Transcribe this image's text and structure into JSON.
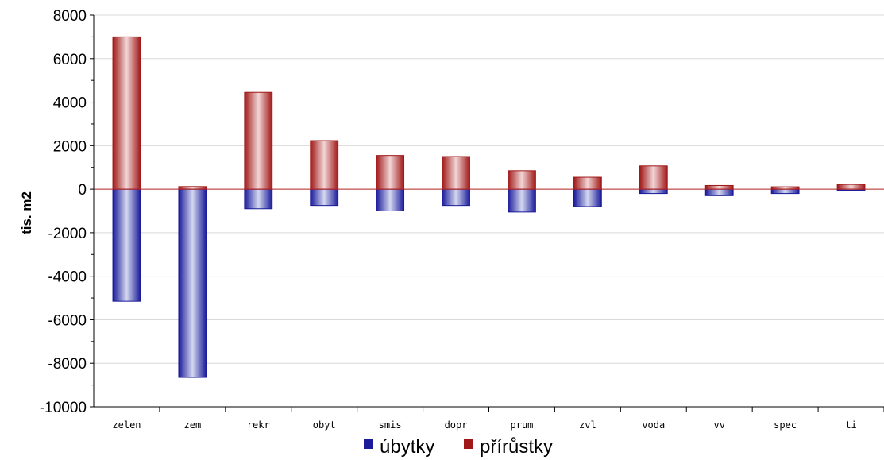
{
  "chart_data": {
    "type": "bar",
    "stacking": "diverging",
    "ylabel": "tis. m2",
    "xlabel": "",
    "ylim": [
      -10000,
      8000
    ],
    "yticks": [
      "8000",
      "6000",
      "4000",
      "2000",
      "0",
      "-2000",
      "-4000",
      "-6000",
      "-8000",
      "-10000"
    ],
    "grid": true,
    "legend_position": "bottom",
    "categories": [
      "zelen",
      "zem",
      "rekr",
      "obyt",
      "smis",
      "dopr",
      "prum",
      "zvl",
      "voda",
      "vv",
      "spec",
      "ti"
    ],
    "series": [
      {
        "name": "úbytky",
        "color": "#1a1a9a",
        "values": [
          -5150,
          -8650,
          -900,
          -750,
          -1000,
          -750,
          -1050,
          -800,
          -200,
          -300,
          -200,
          -50
        ]
      },
      {
        "name": "přírůstky",
        "color": "#a01818",
        "values": [
          7000,
          120,
          4450,
          2230,
          1550,
          1500,
          850,
          550,
          1070,
          170,
          110,
          220
        ]
      }
    ]
  }
}
